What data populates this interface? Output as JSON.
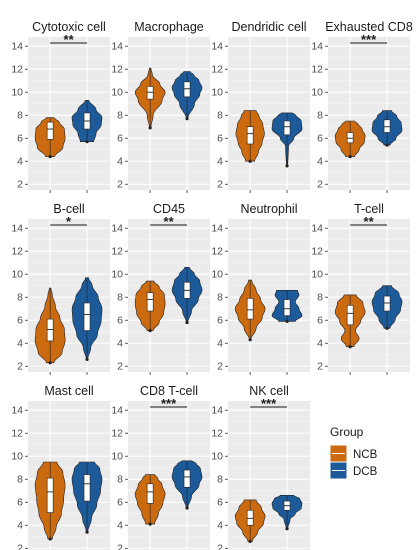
{
  "chart_data": {
    "type": "violin",
    "y_ticks": [
      2,
      4,
      6,
      8,
      10,
      12,
      14
    ],
    "ylim": [
      1.5,
      14.8
    ],
    "grid": true,
    "legend": {
      "title": "Group",
      "position": "right",
      "entries": [
        {
          "label": "NCB",
          "color": "#cc6a10"
        },
        {
          "label": "DCB",
          "color": "#1c5a99"
        }
      ]
    },
    "groups": [
      "NCB",
      "DCB"
    ],
    "colors": {
      "NCB": "#cc6a10",
      "DCB": "#1c5a99"
    },
    "panels": [
      {
        "title": "Cytotoxic cell",
        "significance": "**",
        "NCB": {
          "min": 4.4,
          "q1": 5.9,
          "median": 6.8,
          "q3": 7.4,
          "max": 7.8,
          "profile": [
            [
              4.4,
              0.3
            ],
            [
              5.2,
              0.85
            ],
            [
              6.0,
              1.0
            ],
            [
              6.8,
              0.95
            ],
            [
              7.4,
              0.6
            ],
            [
              7.8,
              0.25
            ]
          ]
        },
        "DCB": {
          "min": 5.7,
          "q1": 6.8,
          "median": 7.5,
          "q3": 8.2,
          "max": 9.3,
          "profile": [
            [
              5.7,
              0.45
            ],
            [
              6.4,
              0.6
            ],
            [
              7.2,
              0.95
            ],
            [
              7.8,
              1.0
            ],
            [
              8.5,
              0.6
            ],
            [
              9.3,
              0.12
            ]
          ]
        }
      },
      {
        "title": "Macrophage",
        "significance": "",
        "NCB": {
          "min": 6.9,
          "q1": 9.4,
          "median": 10.0,
          "q3": 10.5,
          "max": 12.1,
          "profile": [
            [
              6.9,
              0.05
            ],
            [
              8.0,
              0.2
            ],
            [
              9.3,
              0.8
            ],
            [
              10.0,
              1.0
            ],
            [
              10.7,
              0.65
            ],
            [
              11.5,
              0.15
            ],
            [
              12.1,
              0.05
            ]
          ]
        },
        "DCB": {
          "min": 7.7,
          "q1": 9.6,
          "median": 10.3,
          "q3": 10.9,
          "max": 11.8,
          "profile": [
            [
              7.7,
              0.05
            ],
            [
              9.0,
              0.5
            ],
            [
              9.8,
              0.85
            ],
            [
              10.4,
              1.0
            ],
            [
              11.0,
              0.8
            ],
            [
              11.5,
              0.45
            ],
            [
              11.8,
              0.2
            ]
          ]
        }
      },
      {
        "title": "Dendridic cell",
        "significance": "",
        "NCB": {
          "min": 4.0,
          "q1": 5.5,
          "median": 6.4,
          "q3": 7.0,
          "max": 8.4,
          "profile": [
            [
              4.0,
              0.3
            ],
            [
              4.8,
              0.55
            ],
            [
              5.6,
              0.8
            ],
            [
              6.4,
              0.95
            ],
            [
              7.2,
              0.85
            ],
            [
              7.9,
              0.6
            ],
            [
              8.4,
              0.4
            ]
          ]
        },
        "DCB": {
          "min": 3.6,
          "q1": 6.3,
          "median": 7.0,
          "q3": 7.5,
          "max": 8.2,
          "profile": [
            [
              3.6,
              0.05
            ],
            [
              5.3,
              0.1
            ],
            [
              6.0,
              0.45
            ],
            [
              6.8,
              1.0
            ],
            [
              7.5,
              0.95
            ],
            [
              8.0,
              0.6
            ],
            [
              8.2,
              0.35
            ]
          ]
        }
      },
      {
        "title": "Exhausted CD8",
        "significance": "***",
        "NCB": {
          "min": 4.4,
          "q1": 5.6,
          "median": 6.0,
          "q3": 6.5,
          "max": 7.5,
          "profile": [
            [
              4.4,
              0.3
            ],
            [
              5.0,
              0.6
            ],
            [
              5.7,
              0.95
            ],
            [
              6.2,
              1.0
            ],
            [
              6.8,
              0.8
            ],
            [
              7.2,
              0.55
            ],
            [
              7.5,
              0.3
            ]
          ]
        },
        "DCB": {
          "min": 5.4,
          "q1": 6.5,
          "median": 7.0,
          "q3": 7.6,
          "max": 8.4,
          "profile": [
            [
              5.4,
              0.2
            ],
            [
              6.0,
              0.6
            ],
            [
              6.7,
              1.0
            ],
            [
              7.3,
              0.95
            ],
            [
              7.9,
              0.65
            ],
            [
              8.4,
              0.3
            ]
          ]
        }
      },
      {
        "title": "B-cell",
        "significance": "*",
        "NCB": {
          "min": 2.3,
          "q1": 4.2,
          "median": 5.2,
          "q3": 6.1,
          "max": 8.8,
          "profile": [
            [
              2.3,
              0.25
            ],
            [
              3.2,
              0.8
            ],
            [
              4.2,
              1.0
            ],
            [
              5.2,
              0.95
            ],
            [
              6.2,
              0.65
            ],
            [
              7.2,
              0.35
            ],
            [
              8.2,
              0.15
            ],
            [
              8.8,
              0.05
            ]
          ]
        },
        "DCB": {
          "min": 2.6,
          "q1": 5.1,
          "median": 6.5,
          "q3": 7.5,
          "max": 9.7,
          "profile": [
            [
              2.6,
              0.05
            ],
            [
              3.6,
              0.25
            ],
            [
              4.8,
              0.7
            ],
            [
              6.0,
              0.95
            ],
            [
              7.0,
              1.0
            ],
            [
              8.0,
              0.75
            ],
            [
              9.0,
              0.35
            ],
            [
              9.7,
              0.1
            ]
          ]
        }
      },
      {
        "title": "CD45",
        "significance": "**",
        "NCB": {
          "min": 5.1,
          "q1": 6.8,
          "median": 7.8,
          "q3": 8.4,
          "max": 9.4,
          "profile": [
            [
              5.1,
              0.2
            ],
            [
              5.8,
              0.6
            ],
            [
              6.6,
              0.9
            ],
            [
              7.4,
              1.0
            ],
            [
              8.2,
              0.95
            ],
            [
              8.9,
              0.6
            ],
            [
              9.4,
              0.25
            ]
          ]
        },
        "DCB": {
          "min": 5.8,
          "q1": 7.9,
          "median": 8.6,
          "q3": 9.3,
          "max": 10.6,
          "profile": [
            [
              5.8,
              0.05
            ],
            [
              6.8,
              0.3
            ],
            [
              7.8,
              0.75
            ],
            [
              8.6,
              1.0
            ],
            [
              9.4,
              0.85
            ],
            [
              10.0,
              0.5
            ],
            [
              10.6,
              0.15
            ]
          ]
        }
      },
      {
        "title": "Neutrophil",
        "significance": "",
        "NCB": {
          "min": 4.3,
          "q1": 6.1,
          "median": 6.9,
          "q3": 7.9,
          "max": 9.5,
          "profile": [
            [
              4.3,
              0.05
            ],
            [
              5.3,
              0.4
            ],
            [
              6.2,
              0.8
            ],
            [
              7.0,
              1.0
            ],
            [
              7.8,
              0.7
            ],
            [
              8.6,
              0.4
            ],
            [
              9.5,
              0.1
            ]
          ]
        },
        "DCB": {
          "min": 5.9,
          "q1": 6.4,
          "median": 7.0,
          "q3": 7.8,
          "max": 8.6,
          "profile": [
            [
              5.9,
              0.55
            ],
            [
              6.4,
              1.0
            ],
            [
              7.0,
              0.8
            ],
            [
              7.6,
              0.55
            ],
            [
              8.2,
              0.8
            ],
            [
              8.6,
              0.7
            ]
          ]
        }
      },
      {
        "title": "T-cell",
        "significance": "**",
        "NCB": {
          "min": 3.7,
          "q1": 5.6,
          "median": 6.6,
          "q3": 7.3,
          "max": 8.2,
          "profile": [
            [
              3.7,
              0.25
            ],
            [
              4.4,
              0.6
            ],
            [
              5.1,
              0.35
            ],
            [
              5.9,
              0.7
            ],
            [
              6.7,
              1.0
            ],
            [
              7.5,
              0.85
            ],
            [
              8.2,
              0.4
            ]
          ]
        },
        "DCB": {
          "min": 5.3,
          "q1": 6.8,
          "median": 7.5,
          "q3": 8.1,
          "max": 9.0,
          "profile": [
            [
              5.3,
              0.2
            ],
            [
              6.1,
              0.55
            ],
            [
              6.9,
              0.9
            ],
            [
              7.6,
              1.0
            ],
            [
              8.3,
              0.8
            ],
            [
              9.0,
              0.3
            ]
          ]
        }
      },
      {
        "title": "Mast cell",
        "significance": "",
        "NCB": {
          "min": 2.8,
          "q1": 5.1,
          "median": 6.9,
          "q3": 8.1,
          "max": 9.5,
          "profile": [
            [
              2.8,
              0.15
            ],
            [
              3.8,
              0.4
            ],
            [
              5.0,
              0.75
            ],
            [
              6.2,
              0.9
            ],
            [
              7.5,
              1.0
            ],
            [
              8.6,
              0.85
            ],
            [
              9.5,
              0.45
            ]
          ]
        },
        "DCB": {
          "min": 3.4,
          "q1": 6.1,
          "median": 7.6,
          "q3": 8.4,
          "max": 9.5,
          "profile": [
            [
              3.4,
              0.05
            ],
            [
              4.6,
              0.3
            ],
            [
              5.8,
              0.65
            ],
            [
              7.0,
              0.9
            ],
            [
              8.0,
              1.0
            ],
            [
              8.9,
              0.85
            ],
            [
              9.5,
              0.5
            ]
          ]
        }
      },
      {
        "title": "CD8 T-cell",
        "significance": "***",
        "NCB": {
          "min": 4.1,
          "q1": 5.9,
          "median": 6.9,
          "q3": 7.6,
          "max": 8.4,
          "profile": [
            [
              4.1,
              0.3
            ],
            [
              5.0,
              0.55
            ],
            [
              5.9,
              0.85
            ],
            [
              6.7,
              1.0
            ],
            [
              7.5,
              0.8
            ],
            [
              8.1,
              0.5
            ],
            [
              8.4,
              0.3
            ]
          ]
        },
        "DCB": {
          "min": 5.5,
          "q1": 7.3,
          "median": 8.2,
          "q3": 8.8,
          "max": 9.6,
          "profile": [
            [
              5.5,
              0.05
            ],
            [
              6.5,
              0.3
            ],
            [
              7.5,
              0.8
            ],
            [
              8.2,
              1.0
            ],
            [
              8.9,
              0.9
            ],
            [
              9.4,
              0.6
            ],
            [
              9.6,
              0.3
            ]
          ]
        }
      },
      {
        "title": "NK cell",
        "significance": "***",
        "NCB": {
          "min": 2.6,
          "q1": 4.0,
          "median": 4.6,
          "q3": 5.3,
          "max": 6.2,
          "profile": [
            [
              2.6,
              0.15
            ],
            [
              3.4,
              0.5
            ],
            [
              4.2,
              0.9
            ],
            [
              4.8,
              1.0
            ],
            [
              5.5,
              0.75
            ],
            [
              6.2,
              0.4
            ]
          ]
        },
        "DCB": {
          "min": 3.7,
          "q1": 5.3,
          "median": 5.7,
          "q3": 6.1,
          "max": 6.6,
          "profile": [
            [
              3.7,
              0.05
            ],
            [
              4.5,
              0.2
            ],
            [
              5.0,
              0.55
            ],
            [
              5.5,
              0.95
            ],
            [
              5.9,
              1.0
            ],
            [
              6.3,
              0.85
            ],
            [
              6.6,
              0.45
            ]
          ]
        }
      }
    ]
  }
}
